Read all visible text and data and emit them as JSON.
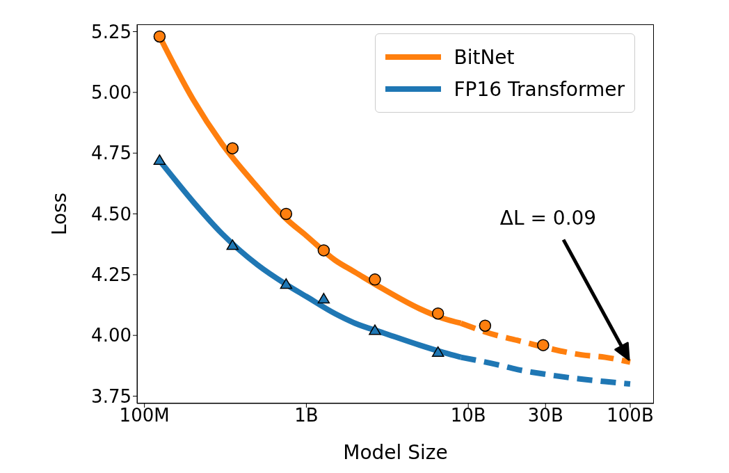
{
  "chart_data": {
    "type": "line",
    "xlabel": "Model Size",
    "ylabel": "Loss",
    "log": "x",
    "xlim": [
      90000000,
      140000000000
    ],
    "xticks": [
      {
        "value": 100000000,
        "label": "100M"
      },
      {
        "value": 1000000000,
        "label": "1B"
      },
      {
        "value": 10000000000,
        "label": "10B"
      },
      {
        "value": 30000000000,
        "label": "30B"
      },
      {
        "value": 100000000000,
        "label": "100B"
      }
    ],
    "ylim": [
      3.72,
      5.28
    ],
    "yticks": [
      3.75,
      {
        "value": 4,
        "label": "4.00"
      },
      4.25,
      {
        "value": 4.5,
        "label": "4.50"
      },
      4.75,
      {
        "value": 5,
        "label": "5.00"
      },
      5.25
    ],
    "grid": false,
    "legend": "top right",
    "series": [
      {
        "name": "BitNet",
        "color": "#ff7f0e",
        "line_style": "solid",
        "marker": "none",
        "x": [
          124000000,
          200000000,
          300000000,
          500000000,
          750000000,
          1000000000,
          1500000000,
          2000000000,
          3000000000,
          5000000000,
          7000000000,
          9000000000
        ],
        "values": [
          5.23,
          4.97,
          4.79,
          4.61,
          4.48,
          4.41,
          4.31,
          4.26,
          4.19,
          4.11,
          4.07,
          4.05
        ]
      },
      {
        "color": "#ff7f0e",
        "line_style": "dashed",
        "marker": "none",
        "x": [
          9000000000,
          15000000000,
          20000000000,
          30000000000,
          50000000000,
          70000000000,
          100000000000
        ],
        "values": [
          4.05,
          4.0,
          3.98,
          3.95,
          3.92,
          3.91,
          3.89
        ]
      },
      {
        "type": "scatter",
        "color": "#ff7f0e",
        "marker": "circle",
        "x": [
          124000000,
          350000000,
          750000000,
          1280000000,
          2650000000,
          6500000000,
          12700000000,
          29000000000
        ],
        "values": [
          5.23,
          4.77,
          4.5,
          4.35,
          4.23,
          4.09,
          4.04,
          3.96
        ]
      },
      {
        "name": "FP16 Transformer",
        "color": "#1f77b4",
        "line_style": "solid",
        "marker": "none",
        "x": [
          124000000,
          200000000,
          300000000,
          500000000,
          750000000,
          1000000000,
          1500000000,
          2000000000,
          3000000000,
          5000000000,
          7000000000,
          9000000000
        ],
        "values": [
          4.72,
          4.55,
          4.42,
          4.29,
          4.21,
          4.16,
          4.09,
          4.05,
          4.01,
          3.96,
          3.93,
          3.91
        ]
      },
      {
        "color": "#1f77b4",
        "line_style": "dashed",
        "marker": "none",
        "x": [
          9000000000,
          15000000000,
          20000000000,
          30000000000,
          50000000000,
          70000000000,
          100000000000
        ],
        "values": [
          3.91,
          3.88,
          3.86,
          3.84,
          3.82,
          3.81,
          3.8
        ]
      },
      {
        "type": "scatter",
        "color": "#1f77b4",
        "marker": "triangle",
        "x": [
          124000000,
          350000000,
          750000000,
          1280000000,
          2650000000,
          6500000000
        ],
        "values": [
          4.72,
          4.37,
          4.21,
          4.15,
          4.02,
          3.93
        ]
      }
    ],
    "annotations": [
      "ΔL = 0.09"
    ]
  }
}
